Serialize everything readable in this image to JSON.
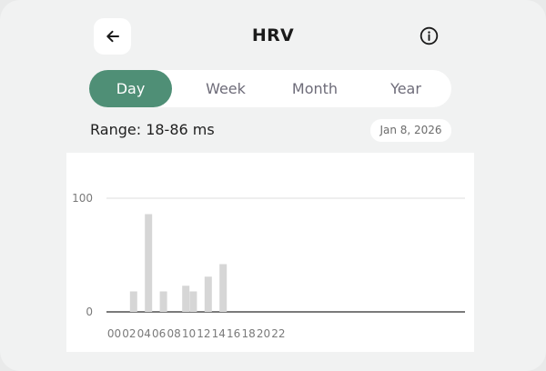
{
  "header": {
    "title": "HRV",
    "back_icon": "arrow-left-icon",
    "info_icon": "info-circle-icon"
  },
  "tabs": [
    {
      "label": "Day",
      "active": true
    },
    {
      "label": "Week",
      "active": false
    },
    {
      "label": "Month",
      "active": false
    },
    {
      "label": "Year",
      "active": false
    }
  ],
  "range_text": "Range: 18-86 ms",
  "date_label": "Jan 8, 2026",
  "colors": {
    "accent": "#4f8f76",
    "bar": "#d6d6d6",
    "background": "#f1f2f2"
  },
  "chart_data": {
    "type": "bar",
    "x_ticks": [
      "00",
      "02",
      "04",
      "06",
      "08",
      "10",
      "12",
      "14",
      "16",
      "18",
      "20",
      "22"
    ],
    "y_ticks": [
      "0",
      "100"
    ],
    "ylim": [
      0,
      100
    ],
    "grid": true,
    "bars": [
      {
        "hour": 1,
        "value": 18
      },
      {
        "hour": 3,
        "value": 86
      },
      {
        "hour": 5,
        "value": 18
      },
      {
        "hour": 8,
        "value": 23
      },
      {
        "hour": 9,
        "value": 18
      },
      {
        "hour": 11,
        "value": 31
      },
      {
        "hour": 13,
        "value": 42
      }
    ]
  }
}
